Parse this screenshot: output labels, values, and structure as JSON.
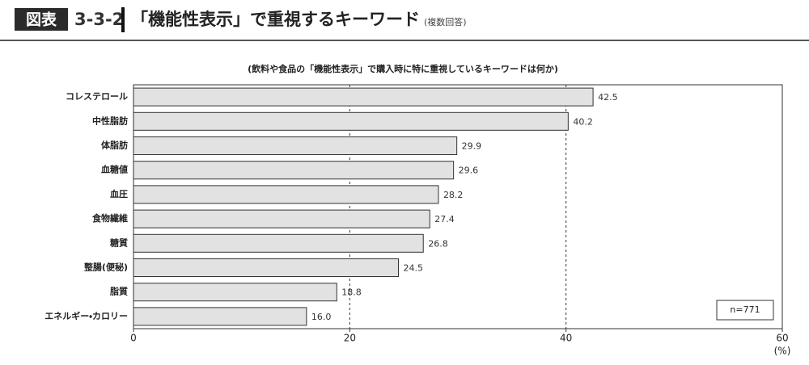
{
  "header": {
    "badge": "図表",
    "number": "3-3-2",
    "title": "「機能性表示」で重視するキーワード",
    "note": "(複数回答)"
  },
  "chart_data": {
    "type": "bar",
    "orientation": "horizontal",
    "subtitle": "(飲料や食品の「機能性表示」で購入時に特に重視しているキーワードは何か)",
    "categories": [
      "コレステロール",
      "中性脂肪",
      "体脂肪",
      "血糖値",
      "血圧",
      "食物繊維",
      "糖質",
      "整腸(便秘)",
      "脂質",
      "エネルギー・カロリー"
    ],
    "values": [
      42.5,
      40.2,
      29.9,
      29.6,
      28.2,
      27.4,
      26.8,
      24.5,
      18.8,
      16.0
    ],
    "value_labels": [
      "42.5",
      "40.2",
      "29.9",
      "29.6",
      "28.2",
      "27.4",
      "26.8",
      "24.5",
      "18.8",
      "16.0"
    ],
    "color": "#e2e2e2",
    "xlim": [
      0,
      60
    ],
    "xticks": [
      0,
      20,
      40,
      60
    ],
    "grid": true,
    "x_unit": "(%)",
    "annotation": "n=771"
  }
}
